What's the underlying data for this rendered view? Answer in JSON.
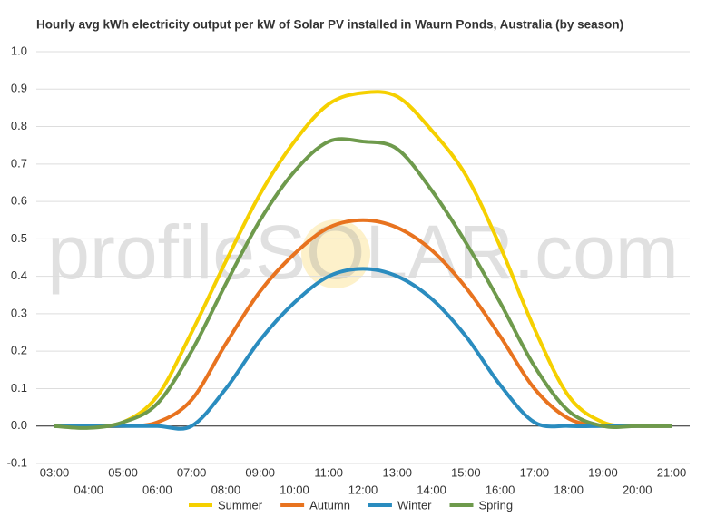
{
  "chart_data": {
    "type": "line",
    "title": "Hourly avg kWh electricity output per kW of Solar PV installed in Waurn Ponds, Australia (by season)",
    "watermark": "profileSOLAR.com",
    "categories": [
      "03:00",
      "04:00",
      "05:00",
      "06:00",
      "07:00",
      "08:00",
      "09:00",
      "10:00",
      "11:00",
      "12:00",
      "13:00",
      "14:00",
      "15:00",
      "16:00",
      "17:00",
      "18:00",
      "19:00",
      "20:00",
      "21:00"
    ],
    "series": [
      {
        "name": "Summer",
        "color": "#f5d000",
        "values": [
          0,
          0,
          0.01,
          0.08,
          0.25,
          0.44,
          0.62,
          0.76,
          0.86,
          0.89,
          0.88,
          0.79,
          0.67,
          0.48,
          0.26,
          0.08,
          0.01,
          0,
          0
        ]
      },
      {
        "name": "Autumn",
        "color": "#e8731f",
        "values": [
          0,
          0,
          0,
          0.01,
          0.07,
          0.22,
          0.36,
          0.46,
          0.53,
          0.55,
          0.53,
          0.47,
          0.37,
          0.24,
          0.1,
          0.02,
          0,
          0,
          0
        ]
      },
      {
        "name": "Winter",
        "color": "#2a8cbf",
        "values": [
          0,
          0,
          0,
          0,
          0,
          0.1,
          0.23,
          0.33,
          0.4,
          0.42,
          0.4,
          0.34,
          0.24,
          0.11,
          0.01,
          0,
          0,
          0,
          0
        ]
      },
      {
        "name": "Spring",
        "color": "#6e9a4c",
        "values": [
          0,
          -0.005,
          0.01,
          0.06,
          0.2,
          0.38,
          0.55,
          0.68,
          0.76,
          0.76,
          0.74,
          0.63,
          0.49,
          0.33,
          0.16,
          0.04,
          0,
          0,
          0
        ]
      }
    ],
    "ylim": [
      -0.1,
      1.0
    ],
    "yticks": [
      -0.1,
      {
        "value": 0,
        "label": "0.0"
      },
      0.1,
      0.2,
      0.3,
      0.4,
      0.5,
      0.6,
      0.7,
      0.8,
      0.9,
      {
        "value": 1,
        "label": "1.0"
      }
    ],
    "grid": true
  }
}
